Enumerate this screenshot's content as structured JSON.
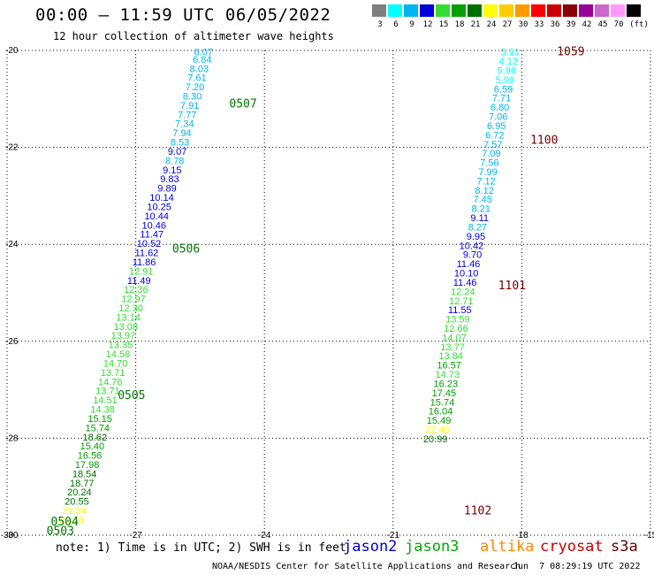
{
  "header": {
    "title": "00:00 – 11:59 UTC 06/05/2022",
    "subtitle": "12 hour collection of altimeter wave heights"
  },
  "colorbar": {
    "unit_label": "(ft)",
    "bins": [
      {
        "label": "3",
        "color": "#7f7f7f"
      },
      {
        "label": "6",
        "color": "#00ffff"
      },
      {
        "label": "9",
        "color": "#00b4f0"
      },
      {
        "label": "12",
        "color": "#0000dd"
      },
      {
        "label": "15",
        "color": "#33dd33"
      },
      {
        "label": "18",
        "color": "#00a000"
      },
      {
        "label": "21",
        "color": "#007000"
      },
      {
        "label": "24",
        "color": "#ffff00"
      },
      {
        "label": "27",
        "color": "#ffcc00"
      },
      {
        "label": "30",
        "color": "#ff9900"
      },
      {
        "label": "33",
        "color": "#ff0000"
      },
      {
        "label": "36",
        "color": "#cc0000"
      },
      {
        "label": "39",
        "color": "#880000"
      },
      {
        "label": "42",
        "color": "#990099"
      },
      {
        "label": "45",
        "color": "#cc66cc"
      },
      {
        "label": "70",
        "color": "#ff99ff"
      },
      {
        "label": "",
        "color": "#000000"
      }
    ]
  },
  "chart_data": {
    "type": "scatter",
    "title": "00:00 – 11:59 UTC 06/05/2022",
    "subtitle": "12 hour collection of altimeter wave heights",
    "xlim": [
      -30,
      -15
    ],
    "ylim": [
      -30,
      -20
    ],
    "x_ticks": [
      "-30",
      "-27",
      "-24",
      "-21",
      "-18",
      "-15"
    ],
    "y_ticks": [
      "-20",
      "-22",
      "-24",
      "-26",
      "-28",
      "-30"
    ],
    "grid": true,
    "series": [
      {
        "name": "jason3",
        "color_by_value": true,
        "points": [
          {
            "x": -25.2,
            "y": -20.03,
            "v": "6.07"
          },
          {
            "x": -25.23,
            "y": -20.18,
            "v": "6.84"
          },
          {
            "x": -25.3,
            "y": -20.37,
            "v": "8.03"
          },
          {
            "x": -25.35,
            "y": -20.56,
            "v": "7.61"
          },
          {
            "x": -25.4,
            "y": -20.75,
            "v": "7.20"
          },
          {
            "x": -25.46,
            "y": -20.94,
            "v": "8.30"
          },
          {
            "x": -25.52,
            "y": -21.13,
            "v": "7.91"
          },
          {
            "x": -25.58,
            "y": -21.32,
            "v": "7.77"
          },
          {
            "x": -25.64,
            "y": -21.51,
            "v": "7.34"
          },
          {
            "x": -25.7,
            "y": -21.7,
            "v": "7.94"
          },
          {
            "x": -25.75,
            "y": -21.89,
            "v": "8.53"
          },
          {
            "x": -25.81,
            "y": -22.08,
            "v": "9.07"
          },
          {
            "x": -25.87,
            "y": -22.27,
            "v": "8.78"
          },
          {
            "x": -25.93,
            "y": -22.46,
            "v": "9.15"
          },
          {
            "x": -25.99,
            "y": -22.65,
            "v": "9.83"
          },
          {
            "x": -26.05,
            "y": -22.84,
            "v": "9.89"
          },
          {
            "x": -26.11,
            "y": -23.03,
            "v": "10.14"
          },
          {
            "x": -26.17,
            "y": -23.22,
            "v": "10.25"
          },
          {
            "x": -26.23,
            "y": -23.41,
            "v": "10.44"
          },
          {
            "x": -26.29,
            "y": -23.6,
            "v": "10.46"
          },
          {
            "x": -26.35,
            "y": -23.79,
            "v": "11.47"
          },
          {
            "x": -26.41,
            "y": -23.98,
            "v": "10.52"
          },
          {
            "x": -26.47,
            "y": -24.17,
            "v": "11.62"
          },
          {
            "x": -26.53,
            "y": -24.36,
            "v": "11.86"
          },
          {
            "x": -26.59,
            "y": -24.55,
            "v": "12.91"
          },
          {
            "x": -26.65,
            "y": -24.74,
            "v": "11.49"
          },
          {
            "x": -26.71,
            "y": -24.93,
            "v": "12.36"
          },
          {
            "x": -26.77,
            "y": -25.12,
            "v": "12.97"
          },
          {
            "x": -26.83,
            "y": -25.31,
            "v": "12.30"
          },
          {
            "x": -26.89,
            "y": -25.5,
            "v": "13.14"
          },
          {
            "x": -26.95,
            "y": -25.69,
            "v": "13.08"
          },
          {
            "x": -27.01,
            "y": -25.88,
            "v": "13.97"
          },
          {
            "x": -27.07,
            "y": -26.07,
            "v": "13.35"
          },
          {
            "x": -27.13,
            "y": -26.26,
            "v": "14.58"
          },
          {
            "x": -27.19,
            "y": -26.45,
            "v": "14.70"
          },
          {
            "x": -27.25,
            "y": -26.64,
            "v": "13.71"
          },
          {
            "x": -27.31,
            "y": -26.83,
            "v": "14.76"
          },
          {
            "x": -27.37,
            "y": -27.02,
            "v": "13.71"
          },
          {
            "x": -27.43,
            "y": -27.21,
            "v": "14.51"
          },
          {
            "x": -27.49,
            "y": -27.4,
            "v": "14.38"
          },
          {
            "x": -27.55,
            "y": -27.59,
            "v": "15.15"
          },
          {
            "x": -27.61,
            "y": -27.78,
            "v": "15.74"
          },
          {
            "x": -27.67,
            "y": -27.97,
            "v": "18.62"
          },
          {
            "x": -27.73,
            "y": -28.16,
            "v": "15.40"
          },
          {
            "x": -27.79,
            "y": -28.35,
            "v": "16.56"
          },
          {
            "x": -27.85,
            "y": -28.54,
            "v": "17.98"
          },
          {
            "x": -27.91,
            "y": -28.73,
            "v": "18.54"
          },
          {
            "x": -27.97,
            "y": -28.92,
            "v": "18.77"
          },
          {
            "x": -28.03,
            "y": -29.11,
            "v": "20.24"
          },
          {
            "x": -28.09,
            "y": -29.3,
            "v": "20.55"
          },
          {
            "x": -28.15,
            "y": -29.49,
            "v": "21.34"
          },
          {
            "x": -28.21,
            "y": -29.68,
            "v": "21.48"
          },
          {
            "x": -18.05,
            "y": -20.03,
            "v": "5.91"
          },
          {
            "x": -18.09,
            "y": -20.22,
            "v": "4.12"
          },
          {
            "x": -18.13,
            "y": -20.41,
            "v": "5.98"
          },
          {
            "x": -18.17,
            "y": -20.6,
            "v": "5.99"
          },
          {
            "x": -18.21,
            "y": -20.79,
            "v": "6.59"
          },
          {
            "x": -18.25,
            "y": -20.98,
            "v": "7.71"
          },
          {
            "x": -18.29,
            "y": -21.17,
            "v": "6.80"
          },
          {
            "x": -18.33,
            "y": -21.36,
            "v": "7.06"
          },
          {
            "x": -18.37,
            "y": -21.55,
            "v": "6.95"
          },
          {
            "x": -18.41,
            "y": -21.74,
            "v": "6.72"
          },
          {
            "x": -18.45,
            "y": -21.93,
            "v": "7.57"
          },
          {
            "x": -18.49,
            "y": -22.12,
            "v": "7.09"
          },
          {
            "x": -18.53,
            "y": -22.31,
            "v": "7.56"
          },
          {
            "x": -18.57,
            "y": -22.5,
            "v": "7.99"
          },
          {
            "x": -18.61,
            "y": -22.69,
            "v": "7.12"
          },
          {
            "x": -18.65,
            "y": -22.88,
            "v": "8.12"
          },
          {
            "x": -18.69,
            "y": -23.07,
            "v": "7.45"
          },
          {
            "x": -18.73,
            "y": -23.26,
            "v": "8.21"
          },
          {
            "x": -18.77,
            "y": -23.45,
            "v": "9.11"
          },
          {
            "x": -18.81,
            "y": -23.64,
            "v": "8.27"
          },
          {
            "x": -18.85,
            "y": -23.83,
            "v": "9.95"
          },
          {
            "x": -18.89,
            "y": -24.02,
            "v": "10.42"
          },
          {
            "x": -18.93,
            "y": -24.21,
            "v": "9.70"
          },
          {
            "x": -18.97,
            "y": -24.4,
            "v": "11.46"
          },
          {
            "x": -19.01,
            "y": -24.59,
            "v": "10.10"
          },
          {
            "x": -19.05,
            "y": -24.78,
            "v": "11.46"
          },
          {
            "x": -19.09,
            "y": -24.97,
            "v": "12.24"
          },
          {
            "x": -19.13,
            "y": -25.16,
            "v": "12.71"
          },
          {
            "x": -19.17,
            "y": -25.35,
            "v": "11.55"
          },
          {
            "x": -19.21,
            "y": -25.54,
            "v": "13.59"
          },
          {
            "x": -19.25,
            "y": -25.73,
            "v": "12.66"
          },
          {
            "x": -19.29,
            "y": -25.92,
            "v": "14.07"
          },
          {
            "x": -19.33,
            "y": -26.11,
            "v": "13.77"
          },
          {
            "x": -19.37,
            "y": -26.3,
            "v": "13.84"
          },
          {
            "x": -19.41,
            "y": -26.49,
            "v": "16.57"
          },
          {
            "x": -19.45,
            "y": -26.68,
            "v": "14.73"
          },
          {
            "x": -19.49,
            "y": -26.87,
            "v": "16.23"
          },
          {
            "x": -19.53,
            "y": -27.06,
            "v": "17.45"
          },
          {
            "x": -19.57,
            "y": -27.25,
            "v": "15.74"
          },
          {
            "x": -19.61,
            "y": -27.44,
            "v": "16.04"
          },
          {
            "x": -19.65,
            "y": -27.63,
            "v": "15.49"
          },
          {
            "x": -19.69,
            "y": -27.82,
            "v": "22.40"
          },
          {
            "x": -19.73,
            "y": -28.01,
            "v": "20.99"
          }
        ]
      }
    ],
    "time_labels": [
      {
        "x": -24.82,
        "y": -21.1,
        "text": "0507",
        "color": "#007700"
      },
      {
        "x": -26.15,
        "y": -24.1,
        "text": "0506",
        "color": "#007700"
      },
      {
        "x": -27.42,
        "y": -27.12,
        "text": "0505",
        "color": "#007700"
      },
      {
        "x": -28.98,
        "y": -29.73,
        "text": "0504",
        "color": "#007700"
      },
      {
        "x": -29.08,
        "y": -29.92,
        "text": "0503",
        "color": "#007700"
      },
      {
        "x": -17.18,
        "y": -20.03,
        "text": "1059",
        "color": "#770000"
      },
      {
        "x": -17.8,
        "y": -21.85,
        "text": "1100",
        "color": "#770000"
      },
      {
        "x": -18.55,
        "y": -24.85,
        "text": "1101",
        "color": "#770000"
      },
      {
        "x": -19.35,
        "y": -29.5,
        "text": "1102",
        "color": "#770000"
      }
    ]
  },
  "footer": {
    "note": "note: 1) Time is in UTC; 2) SWH is in feet",
    "satellites": [
      {
        "name": "jason2",
        "color": "#0000cc"
      },
      {
        "name": "jason3",
        "color": "#00aa00"
      },
      {
        "name": "altika",
        "color": "#ff8800"
      },
      {
        "name": "cryosat",
        "color": "#cc0000"
      },
      {
        "name": "s3a",
        "color": "#660000"
      }
    ],
    "credit": "NOAA/NESDIS Center for Satellite Applications and Research",
    "timestamp": "Jun  7 08:29:19 UTC 2022"
  }
}
